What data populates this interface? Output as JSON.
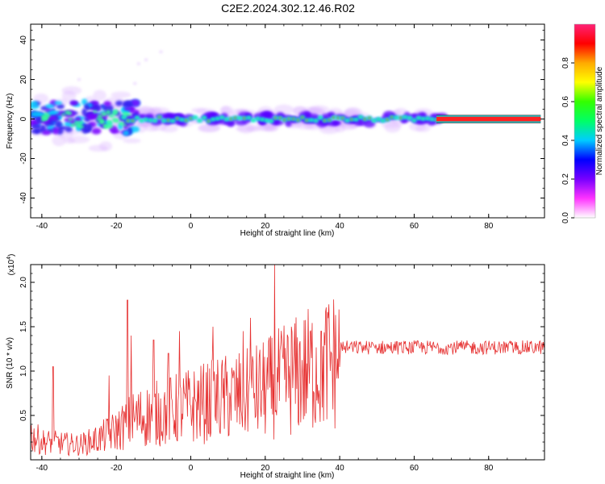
{
  "title": "C2E2.2024.302.12.46.R02",
  "chart_data": [
    {
      "type": "heatmap",
      "xlabel": "Height of straight line (km)",
      "ylabel": "Frequency (Hz)",
      "xlim": [
        -43,
        95
      ],
      "ylim": [
        -50,
        48
      ],
      "xticks": [
        -40,
        -20,
        0,
        20,
        40,
        60,
        80
      ],
      "yticks": [
        40,
        20,
        0,
        -20,
        -40
      ],
      "colorbar": {
        "label": "Normalized spectral amplitude",
        "range": [
          0,
          1
        ],
        "ticks": [
          "0.0",
          "0.2",
          "0.4",
          "0.6",
          "0.8"
        ],
        "colors": [
          "#ffffff",
          "#ff33ff",
          "#7700ff",
          "#0000ff",
          "#00ccff",
          "#00ff66",
          "#33ff00",
          "#ffff00",
          "#ffaa00",
          "#ff0000",
          "#ff2277"
        ]
      },
      "features": [
        {
          "x": [
            -43,
            -15
          ],
          "band_hz": [
            -8,
            10
          ],
          "note": "broad noisy band, mixed blue/cyan"
        },
        {
          "x": [
            -20,
            68
          ],
          "band_hz": [
            -3,
            3
          ],
          "note": "narrow cyan-green band with red peaks"
        },
        {
          "x": [
            68,
            94
          ],
          "band_hz": [
            -1,
            1
          ],
          "note": "solid red line near 0 Hz"
        }
      ]
    },
    {
      "type": "line",
      "xlabel": "Height of straight line (km)",
      "ylabel": "SNR (10 * v/v)",
      "yscale_label": "(x10",
      "yscale_exp": "4",
      "y_unit_multiplier": 10000,
      "xlim": [
        -43,
        95
      ],
      "ylim": [
        0,
        2.2
      ],
      "xticks": [
        -40,
        -20,
        0,
        20,
        40,
        60,
        80
      ],
      "yticks": [
        0.5,
        1.0,
        1.5,
        2.0
      ],
      "ytick_labels": [
        "0.5",
        "1.0",
        "1.5",
        "2.0"
      ],
      "line_color": "#e63030",
      "series": [
        {
          "x": [
            -43,
            -40,
            -35,
            -30,
            -25,
            -20,
            -15,
            -10,
            -5,
            0,
            5,
            10,
            15,
            20,
            25,
            30,
            35,
            40,
            45,
            50,
            55,
            60,
            65,
            70,
            75,
            80,
            85,
            90,
            94
          ],
          "values": [
            0.3,
            0.22,
            0.2,
            0.18,
            0.25,
            0.35,
            0.5,
            0.55,
            0.6,
            0.65,
            0.7,
            0.75,
            0.78,
            0.85,
            0.95,
            1.05,
            1.15,
            1.22,
            1.25,
            1.25,
            1.25,
            1.25,
            1.25,
            1.25,
            1.25,
            1.25,
            1.25,
            1.25,
            1.25
          ],
          "spikes": [
            [
              -37,
              1.05
            ],
            [
              -22,
              0.95
            ],
            [
              -17,
              1.8
            ],
            [
              -16,
              1.4
            ],
            [
              -10,
              1.35
            ],
            [
              -6,
              1.2
            ],
            [
              -3,
              1.45
            ],
            [
              6,
              1.5
            ],
            [
              14,
              1.45
            ],
            [
              16,
              1.6
            ],
            [
              22.5,
              2.2
            ],
            [
              27,
              1.5
            ],
            [
              35,
              1.45
            ]
          ]
        }
      ]
    }
  ]
}
